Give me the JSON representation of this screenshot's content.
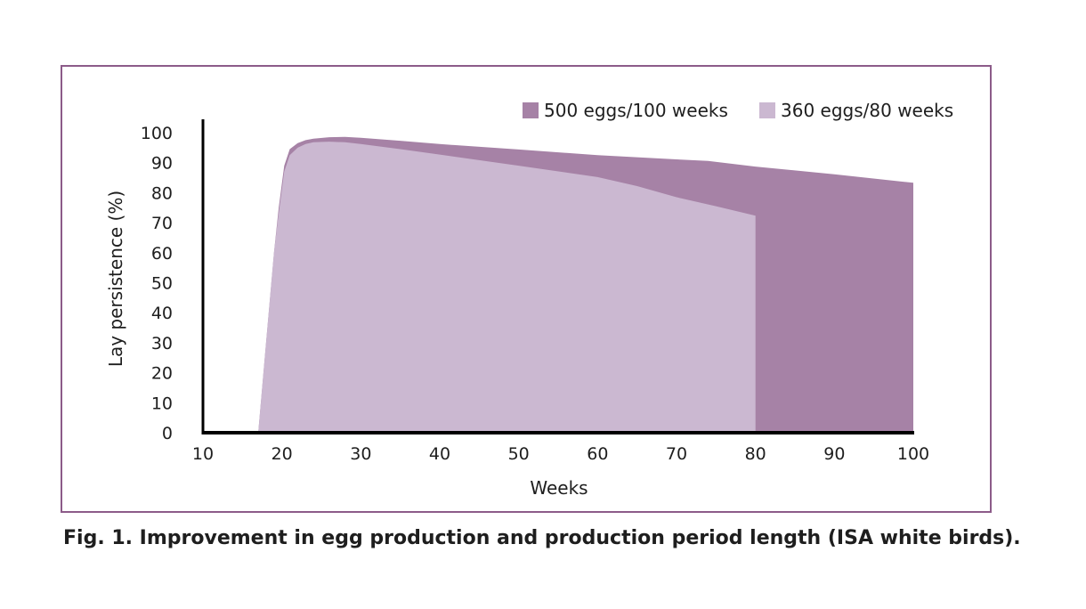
{
  "chart_data": {
    "type": "area",
    "title": "",
    "xlabel": "Weeks",
    "ylabel": "Lay persistence (%)",
    "xlim": [
      10,
      100
    ],
    "ylim": [
      0,
      100
    ],
    "x_ticks": [
      10,
      20,
      30,
      40,
      50,
      60,
      70,
      80,
      90,
      100
    ],
    "y_ticks": [
      0,
      10,
      20,
      30,
      40,
      50,
      60,
      70,
      80,
      90,
      100
    ],
    "legend_position": "top-right",
    "series": [
      {
        "name": "500 eggs/100 weeks",
        "color": "#a682a6",
        "x": [
          17,
          18,
          19,
          19.6,
          20.3,
          21,
          22,
          23,
          24,
          26,
          28,
          30,
          35,
          40,
          50,
          60,
          70,
          74,
          80,
          90,
          100
        ],
        "y": [
          0,
          30,
          60,
          75,
          89,
          94.5,
          96.5,
          97.5,
          98,
          98.5,
          98.6,
          98.3,
          97.3,
          96.2,
          94.4,
          92.5,
          91.1,
          90.6,
          88.7,
          86.1,
          83.3
        ]
      },
      {
        "name": "360 eggs/80 weeks",
        "color": "#cbb8d1",
        "x": [
          17,
          18,
          19,
          19.5,
          20.3,
          21,
          22,
          23,
          24,
          26,
          28,
          30,
          35,
          40,
          50,
          60,
          65,
          70,
          75,
          80,
          80
        ],
        "y": [
          0,
          30,
          60,
          71,
          87,
          92.5,
          95,
          96.2,
          96.8,
          97,
          96.8,
          96.2,
          94.5,
          92.7,
          89,
          85.2,
          82.2,
          78.5,
          75.5,
          72.3,
          0
        ]
      }
    ]
  },
  "caption": "Fig. 1. Improvement in egg production and production period length (ISA white birds)."
}
